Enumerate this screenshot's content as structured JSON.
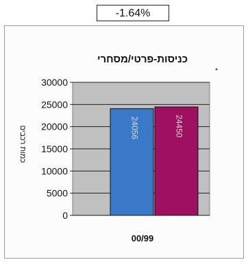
{
  "header": {
    "change_percent": "-1.64%"
  },
  "chart_data": {
    "type": "bar",
    "title": "כניסות-פרטי/מסחרי",
    "xlabel": "",
    "ylabel": "כמות רכבים",
    "categories": [
      "00/99"
    ],
    "ylim": [
      0,
      30000
    ],
    "yticks": [
      30000,
      25000,
      20000,
      15000,
      10000,
      5000,
      0
    ],
    "grid": true,
    "plot_background": "#c0c0c0",
    "series": [
      {
        "values": [
          24056
        ],
        "color": "#3a78c8",
        "data_label": "24056"
      },
      {
        "values": [
          24450
        ],
        "color": "#a01060",
        "data_label": "24450"
      }
    ]
  }
}
